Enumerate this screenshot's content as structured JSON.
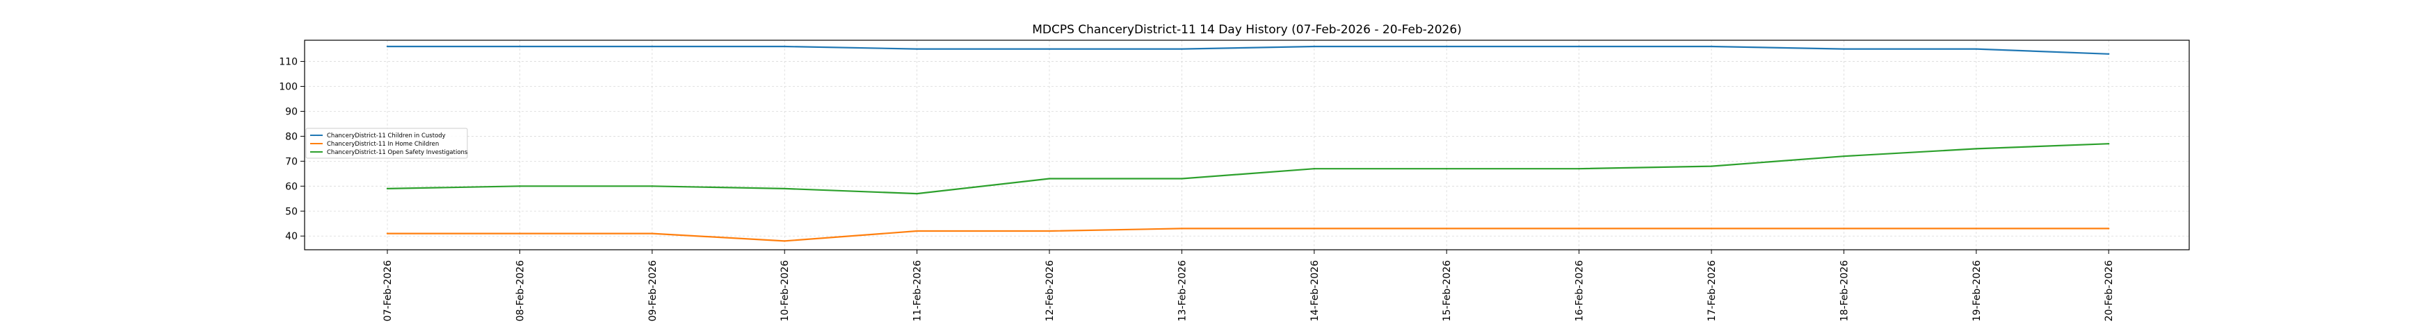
{
  "chart_data": {
    "type": "line",
    "title": "MDCPS ChanceryDistrict-11 14 Day History (07-Feb-2026 - 20-Feb-2026)",
    "xlabel": "",
    "ylabel": "",
    "categories": [
      "07-Feb-2026",
      "08-Feb-2026",
      "09-Feb-2026",
      "10-Feb-2026",
      "11-Feb-2026",
      "12-Feb-2026",
      "13-Feb-2026",
      "14-Feb-2026",
      "15-Feb-2026",
      "16-Feb-2026",
      "17-Feb-2026",
      "18-Feb-2026",
      "19-Feb-2026",
      "20-Feb-2026"
    ],
    "yticks": [
      40,
      50,
      60,
      70,
      80,
      90,
      100,
      110
    ],
    "ylim": [
      34.5,
      118.5
    ],
    "grid": true,
    "legend_position": "center-left",
    "series": [
      {
        "name": "ChanceryDistrict-11 Children in Custody",
        "color": "#1f77b4",
        "values": [
          116,
          116,
          116,
          116,
          115,
          115,
          115,
          116,
          116,
          116,
          116,
          115,
          115,
          113
        ]
      },
      {
        "name": "ChanceryDistrict-11 In Home Children",
        "color": "#ff7f0e",
        "values": [
          41,
          41,
          41,
          38,
          42,
          42,
          43,
          43,
          43,
          43,
          43,
          43,
          43,
          43
        ]
      },
      {
        "name": "ChanceryDistrict-11 Open Safety Investigations",
        "color": "#2ca02c",
        "values": [
          59,
          60,
          60,
          59,
          57,
          63,
          63,
          67,
          67,
          67,
          68,
          72,
          75,
          77
        ]
      }
    ]
  }
}
